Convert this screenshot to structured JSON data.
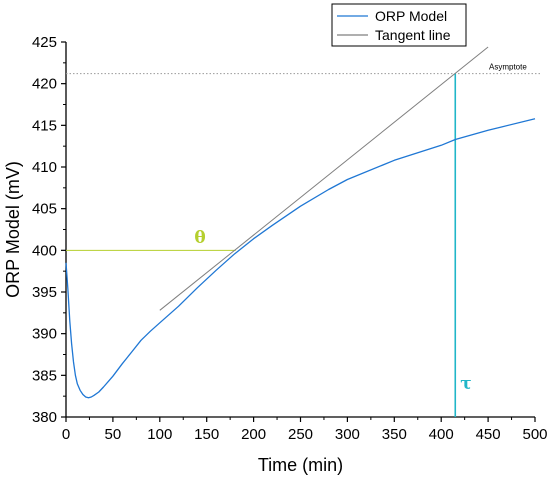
{
  "chart_data": {
    "type": "line",
    "xlabel": "Time (min)",
    "ylabel": "ORP Model (mV)",
    "xlim": [
      0,
      500
    ],
    "ylim": [
      380,
      425
    ],
    "xticks": [
      0,
      50,
      100,
      150,
      200,
      250,
      300,
      350,
      400,
      450,
      500
    ],
    "yticks": [
      380,
      385,
      390,
      395,
      400,
      405,
      410,
      415,
      420,
      425
    ],
    "grid": false,
    "legend_position": "top-right",
    "series": [
      {
        "name": "ORP Model",
        "color": "#1f77d4",
        "x": [
          0,
          1,
          2,
          4,
          6,
          8,
          10,
          12,
          15,
          18,
          21,
          24,
          27,
          30,
          35,
          40,
          50,
          60,
          70,
          80,
          90,
          100,
          120,
          140,
          160,
          180,
          200,
          220,
          250,
          280,
          300,
          350,
          400,
          415,
          450,
          500
        ],
        "y": [
          398.5,
          397.0,
          395.3,
          391.5,
          388.8,
          386.6,
          385.0,
          384.0,
          383.2,
          382.7,
          382.4,
          382.3,
          382.4,
          382.6,
          383.0,
          383.6,
          384.9,
          386.4,
          387.8,
          389.2,
          390.3,
          391.3,
          393.3,
          395.5,
          397.6,
          399.6,
          401.4,
          403.0,
          405.3,
          407.3,
          408.5,
          410.8,
          412.6,
          413.3,
          414.4,
          415.8
        ]
      },
      {
        "name": "Tangent line",
        "color": "#7f7f7f",
        "x": [
          100,
          450
        ],
        "y": [
          392.8,
          424.4
        ]
      }
    ],
    "annotations": {
      "asymptote_label": "Asymptote",
      "asymptote_y": 421.2,
      "theta_label": "θ",
      "theta_y": 400,
      "theta_x_end": 181,
      "theta_color": "#b5cf2e",
      "tau_label": "τ",
      "tau_x": 415,
      "tau_color": "#20b6c8"
    }
  }
}
